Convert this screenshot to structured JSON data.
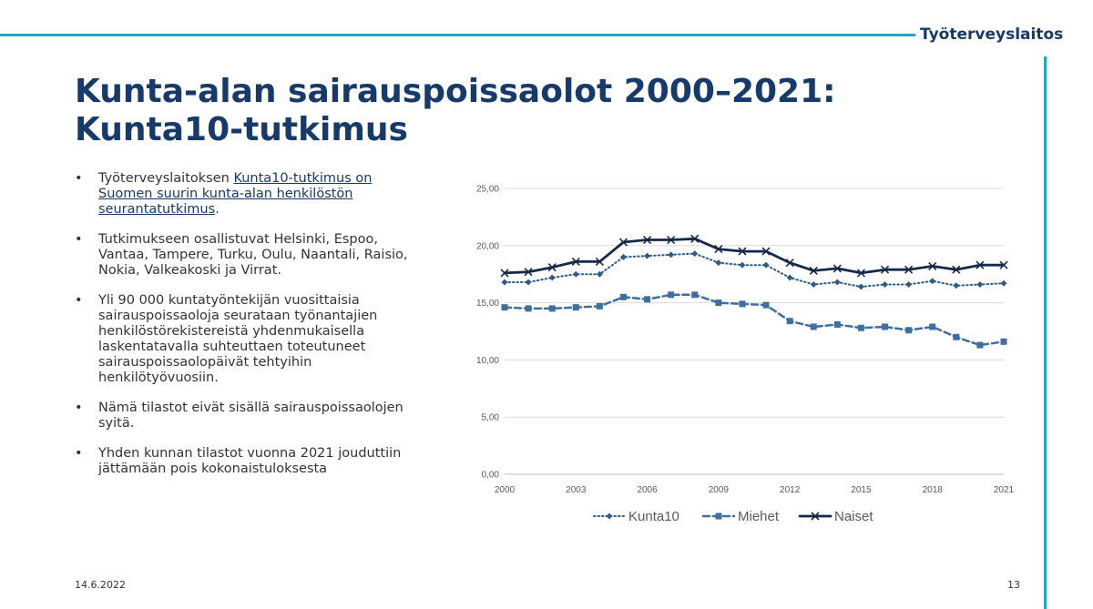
{
  "brand": "Työterveyslaitos",
  "title": {
    "line1": "Kunta-alan sairauspoissaolot 2000–2021:",
    "line2": "Kunta10-tutkimus"
  },
  "bullets": {
    "b1_pre": "Työterveyslaitoksen ",
    "b1_link": "Kunta10-tutkimus on Suomen suurin kunta-alan henkilöstön seurantatutkimus",
    "b1_post": ".",
    "b2": "Tutkimukseen osallistuvat Helsinki, Espoo, Vantaa, Tampere, Turku, Oulu, Naantali, Raisio, Nokia, Valkeakoski ja Virrat.",
    "b3": "Yli 90 000 kuntatyöntekijän vuosittaisia sairauspoissaoloja seurataan työnantajien henkilöstörekistereistä yhdenmukaisella laskentatavalla suhteuttaen toteutuneet sairauspoissaolopäivät tehtyihin henkilötyövuosiin.",
    "b4": "Nämä tilastot eivät sisällä sairauspoissaolojen syitä.",
    "b5": "Yhden kunnan tilastot vuonna 2021 jouduttiin jättämään pois kokonaistuloksesta"
  },
  "footer": {
    "date": "14.6.2022",
    "page": "13"
  },
  "chart_data": {
    "type": "line",
    "x": [
      2000,
      2001,
      2002,
      2003,
      2004,
      2005,
      2006,
      2007,
      2008,
      2009,
      2010,
      2011,
      2012,
      2013,
      2014,
      2015,
      2016,
      2017,
      2018,
      2019,
      2020,
      2021
    ],
    "x_tick_labels": [
      "2000",
      "2003",
      "2006",
      "2009",
      "2012",
      "2015",
      "2018",
      "2021"
    ],
    "y_tick_labels": [
      "0,00",
      "5,00",
      "10,00",
      "15,00",
      "20,00",
      "25,00"
    ],
    "ylim": [
      0,
      25
    ],
    "grid": true,
    "legend_position": "bottom",
    "series": [
      {
        "name": "Kunta10",
        "color": "#2e5c8a",
        "style": "dotted",
        "marker": "diamond",
        "values": [
          16.8,
          16.8,
          17.2,
          17.5,
          17.5,
          19.0,
          19.1,
          19.2,
          19.3,
          18.5,
          18.3,
          18.3,
          17.2,
          16.6,
          16.8,
          16.4,
          16.6,
          16.6,
          16.9,
          16.5,
          16.6,
          16.7
        ]
      },
      {
        "name": "Miehet",
        "color": "#3d6fa0",
        "style": "dashed",
        "marker": "square",
        "values": [
          14.6,
          14.5,
          14.5,
          14.6,
          14.7,
          15.5,
          15.3,
          15.7,
          15.7,
          15.0,
          14.9,
          14.8,
          13.4,
          12.9,
          13.1,
          12.8,
          12.9,
          12.6,
          12.9,
          12.0,
          11.3,
          11.6
        ]
      },
      {
        "name": "Naiset",
        "color": "#15294a",
        "style": "solid",
        "marker": "x",
        "values": [
          17.6,
          17.7,
          18.1,
          18.6,
          18.6,
          20.3,
          20.5,
          20.5,
          20.6,
          19.7,
          19.5,
          19.5,
          18.5,
          17.8,
          18.0,
          17.6,
          17.9,
          17.9,
          18.2,
          17.9,
          18.3,
          18.3
        ]
      }
    ]
  }
}
